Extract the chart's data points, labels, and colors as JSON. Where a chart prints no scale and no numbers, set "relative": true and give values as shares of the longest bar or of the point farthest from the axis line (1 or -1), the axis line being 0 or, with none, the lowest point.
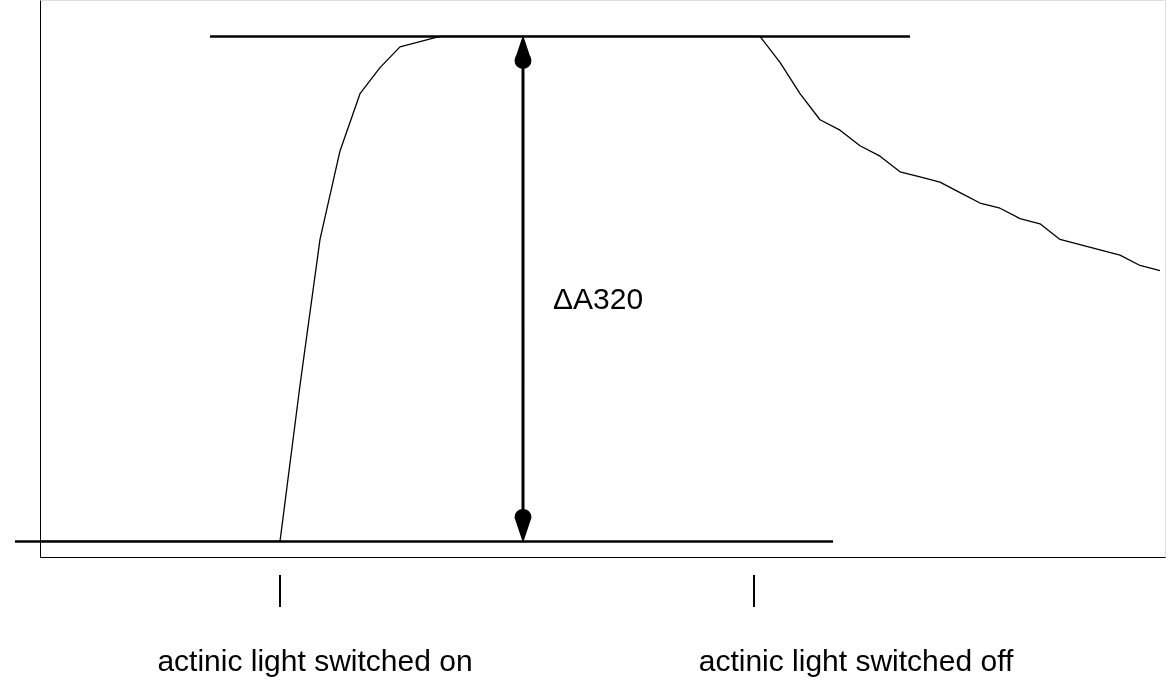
{
  "chart_data": {
    "type": "line",
    "relative": true,
    "categories": [
      null,
      null,
      null,
      null,
      null,
      null,
      null,
      null,
      null,
      null,
      null,
      null,
      null,
      null,
      null,
      null,
      null,
      null,
      null,
      null,
      null,
      null,
      null,
      null,
      null,
      null,
      null,
      null,
      null,
      null,
      null,
      null,
      null,
      null,
      null,
      null,
      null,
      null,
      null,
      null,
      null,
      null,
      null,
      null,
      null,
      null,
      null,
      null,
      null,
      null,
      null,
      null,
      null,
      null,
      null,
      null,
      null
    ],
    "series": [
      {
        "color": "#000000",
        "values": [
          0.03,
          0.03,
          0.03,
          0.03,
          0.03,
          0.03,
          0.03,
          0.03,
          0.03,
          0.03,
          0.03,
          0.03,
          0.03,
          0.33,
          0.61,
          0.78,
          0.89,
          0.94,
          0.98,
          0.99,
          1.0,
          1.0,
          1.0,
          1.0,
          1.0,
          1.0,
          1.0,
          1.0,
          1.0,
          1.0,
          1.0,
          1.0,
          1.0,
          1.0,
          1.0,
          1.0,
          1.0,
          0.95,
          0.89,
          0.84,
          0.82,
          0.79,
          0.77,
          0.74,
          0.73,
          0.72,
          0.7,
          0.68,
          0.67,
          0.65,
          0.64,
          0.61,
          0.6,
          0.59,
          0.58,
          0.56,
          0.55
        ]
      }
    ],
    "ref_lines": [
      {
        "axis": "y",
        "value": 0.03,
        "color": "#000000"
      },
      {
        "axis": "y",
        "value": 1.0,
        "color": "#000000"
      }
    ],
    "annotations": [
      "ΔA320",
      "actinic light switched on",
      "actinic light switched off"
    ],
    "grid": false
  }
}
